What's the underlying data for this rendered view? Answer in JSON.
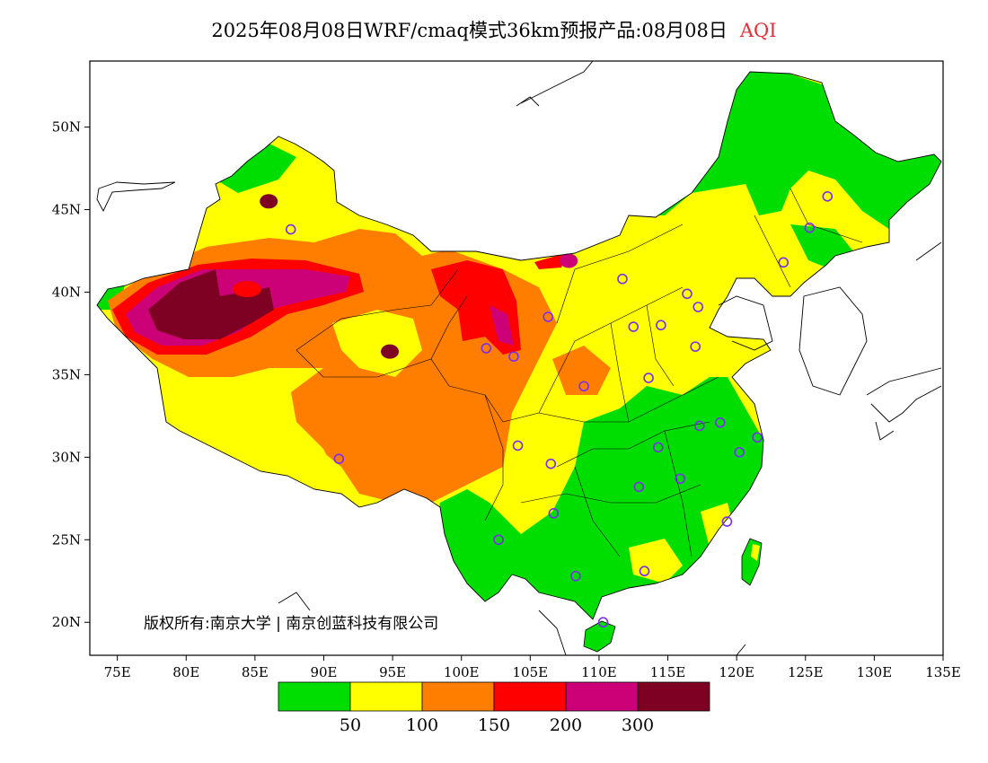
{
  "title": {
    "main": "2025年08月08日WRF/cmaq模式36km预报产品:08月08日",
    "variable": "AQI"
  },
  "copyright": "版权所有:南京大学 | 南京创蓝科技有限公司",
  "axes": {
    "lat_ticks": [
      {
        "value": 20,
        "label": "20N"
      },
      {
        "value": 25,
        "label": "25N"
      },
      {
        "value": 30,
        "label": "30N"
      },
      {
        "value": 35,
        "label": "35N"
      },
      {
        "value": 40,
        "label": "40N"
      },
      {
        "value": 45,
        "label": "45N"
      },
      {
        "value": 50,
        "label": "50N"
      }
    ],
    "lon_ticks": [
      {
        "value": 75,
        "label": "75E"
      },
      {
        "value": 80,
        "label": "80E"
      },
      {
        "value": 85,
        "label": "85E"
      },
      {
        "value": 90,
        "label": "90E"
      },
      {
        "value": 95,
        "label": "95E"
      },
      {
        "value": 100,
        "label": "100E"
      },
      {
        "value": 105,
        "label": "105E"
      },
      {
        "value": 110,
        "label": "110E"
      },
      {
        "value": 115,
        "label": "115E"
      },
      {
        "value": 120,
        "label": "120E"
      },
      {
        "value": 125,
        "label": "125E"
      },
      {
        "value": 130,
        "label": "130E"
      },
      {
        "value": 135,
        "label": "135E"
      }
    ],
    "lon_range": [
      73,
      135
    ],
    "lat_range": [
      18,
      54
    ]
  },
  "legend": {
    "colors": [
      "#00dd00",
      "#ffff00",
      "#ff7e00",
      "#ff0000",
      "#cc0077",
      "#7e0023"
    ],
    "labels": [
      "50",
      "100",
      "150",
      "200",
      "300"
    ]
  },
  "cities": [
    {
      "lon": 87.6,
      "lat": 43.8
    },
    {
      "lon": 91.1,
      "lat": 29.9
    },
    {
      "lon": 101.8,
      "lat": 36.6
    },
    {
      "lon": 103.8,
      "lat": 36.1
    },
    {
      "lon": 106.3,
      "lat": 38.5
    },
    {
      "lon": 111.7,
      "lat": 40.8
    },
    {
      "lon": 112.5,
      "lat": 37.9
    },
    {
      "lon": 114.5,
      "lat": 38.0
    },
    {
      "lon": 116.4,
      "lat": 39.9
    },
    {
      "lon": 117.2,
      "lat": 39.1
    },
    {
      "lon": 117.0,
      "lat": 36.7
    },
    {
      "lon": 113.6,
      "lat": 34.8
    },
    {
      "lon": 108.9,
      "lat": 34.3
    },
    {
      "lon": 104.1,
      "lat": 30.7
    },
    {
      "lon": 106.5,
      "lat": 29.6
    },
    {
      "lon": 106.7,
      "lat": 26.6
    },
    {
      "lon": 102.7,
      "lat": 25.0
    },
    {
      "lon": 108.3,
      "lat": 22.8
    },
    {
      "lon": 113.3,
      "lat": 23.1
    },
    {
      "lon": 110.3,
      "lat": 20.0
    },
    {
      "lon": 112.9,
      "lat": 28.2
    },
    {
      "lon": 114.3,
      "lat": 30.6
    },
    {
      "lon": 115.9,
      "lat": 28.7
    },
    {
      "lon": 117.3,
      "lat": 31.9
    },
    {
      "lon": 118.8,
      "lat": 32.1
    },
    {
      "lon": 120.2,
      "lat": 30.3
    },
    {
      "lon": 121.5,
      "lat": 31.2
    },
    {
      "lon": 119.3,
      "lat": 26.1
    },
    {
      "lon": 123.4,
      "lat": 41.8
    },
    {
      "lon": 125.3,
      "lat": 43.9
    },
    {
      "lon": 126.6,
      "lat": 45.8
    }
  ],
  "hotspots": [
    {
      "lon": 81.5,
      "lat": 39.2,
      "level": 5
    },
    {
      "lon": 86.0,
      "lat": 45.5,
      "level": 5
    },
    {
      "lon": 94.8,
      "lat": 36.4,
      "level": 5
    },
    {
      "lon": 107.8,
      "lat": 41.9,
      "level": 4
    },
    {
      "lon": 101.5,
      "lat": 37.8,
      "level": 3
    }
  ]
}
